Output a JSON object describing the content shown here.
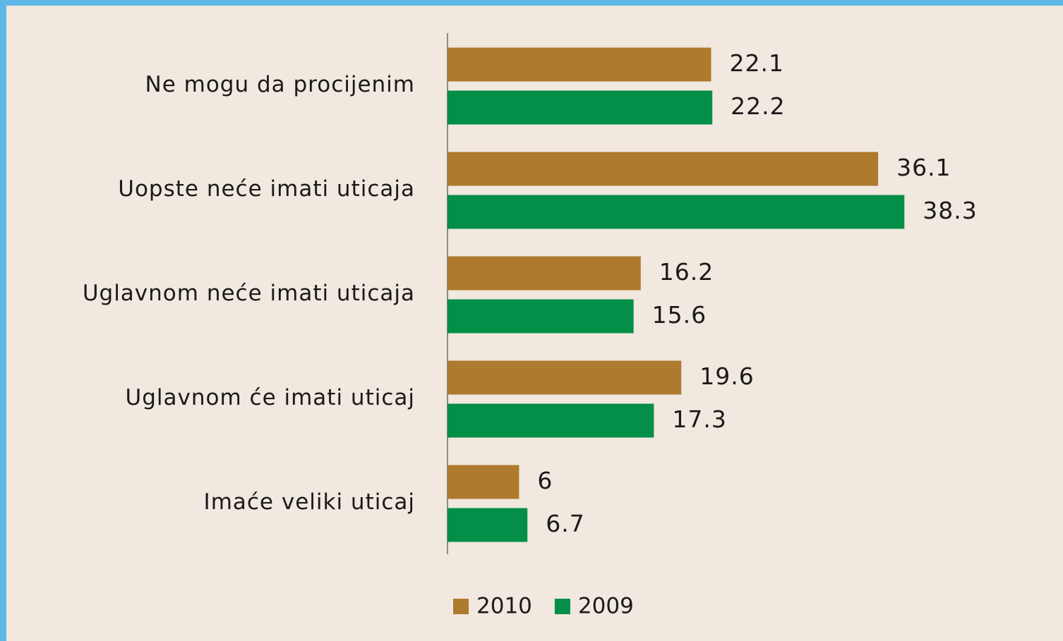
{
  "chart_data": {
    "type": "barh",
    "categories": [
      "Ne mogu da procijenim",
      "Uopste neće imati uticaja",
      "Uglavnom neće imati uticaja",
      "Uglavnom će imati uticaj",
      "Imaće veliki uticaj"
    ],
    "series": [
      {
        "name": "2010",
        "color": "#ad7a2e",
        "values": [
          22.1,
          36.1,
          16.2,
          19.6,
          6
        ]
      },
      {
        "name": "2009",
        "color": "#038f47",
        "values": [
          22.2,
          38.3,
          15.6,
          17.3,
          6.7
        ]
      }
    ],
    "xlim": [
      0,
      50
    ]
  }
}
